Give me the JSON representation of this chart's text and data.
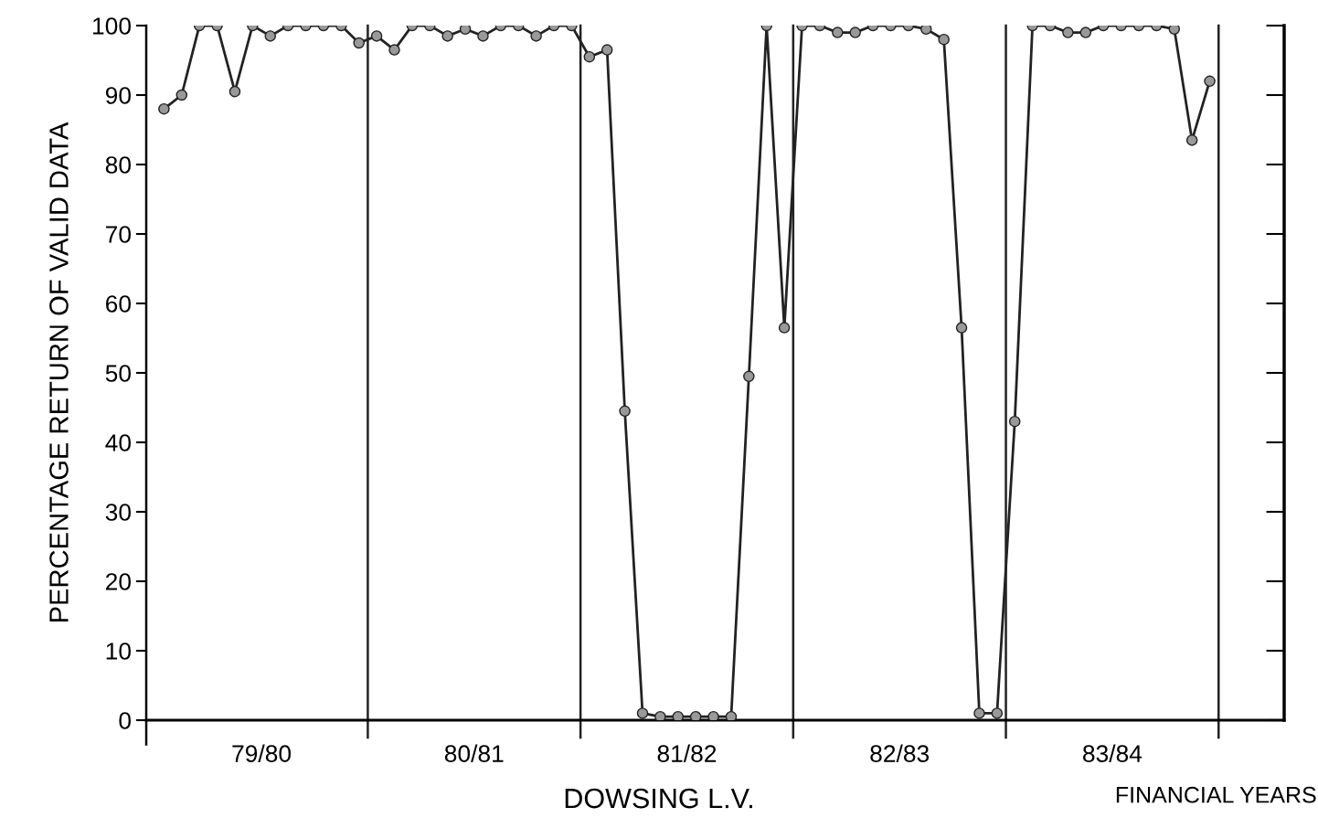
{
  "chart_data": {
    "type": "line",
    "title": "DOWSING L.V.",
    "xlabel": "FINANCIAL YEARS",
    "ylabel": "PERCENTAGE RETURN OF VALID DATA",
    "categories": [
      null,
      null,
      null,
      null,
      null,
      null,
      null,
      null,
      null,
      null,
      null,
      null,
      null,
      null,
      null,
      null,
      null,
      null,
      null,
      null,
      null,
      null,
      null,
      null,
      null,
      null,
      null,
      null,
      null,
      null,
      null,
      null,
      null,
      null,
      null,
      null,
      null,
      null,
      null,
      null,
      null,
      null,
      null,
      null,
      null,
      null,
      null,
      null,
      null,
      null,
      null,
      null,
      null,
      null,
      null,
      null,
      null,
      null,
      null,
      null
    ],
    "series": [
      {
        "color": "#222222",
        "values": [
          88,
          90,
          100,
          100,
          90.5,
          100,
          98.5,
          100,
          100,
          100,
          100,
          97.5,
          98.5,
          96.5,
          100,
          100,
          98.5,
          99.5,
          98.5,
          100,
          100,
          98.5,
          100,
          100,
          95.5,
          96.5,
          44.5,
          1,
          0.5,
          0.5,
          0.5,
          0.5,
          0.5,
          49.5,
          100,
          56.5,
          100,
          100,
          99,
          99,
          100,
          100,
          100,
          99.5,
          98,
          56.5,
          1,
          1,
          43,
          100,
          100,
          99,
          99,
          100,
          100,
          100,
          100,
          99.5,
          83.5,
          92
        ]
      }
    ],
    "annotations": [
      "79/80",
      "80/81",
      "81/82",
      "82/83",
      "83/84"
    ],
    "marker": "circle",
    "line_style": "solid",
    "grid": false,
    "legend": false,
    "ylim": [
      0,
      100
    ],
    "yticks": [
      0,
      10,
      20,
      30,
      40,
      50,
      60,
      70,
      80,
      90,
      100
    ]
  }
}
